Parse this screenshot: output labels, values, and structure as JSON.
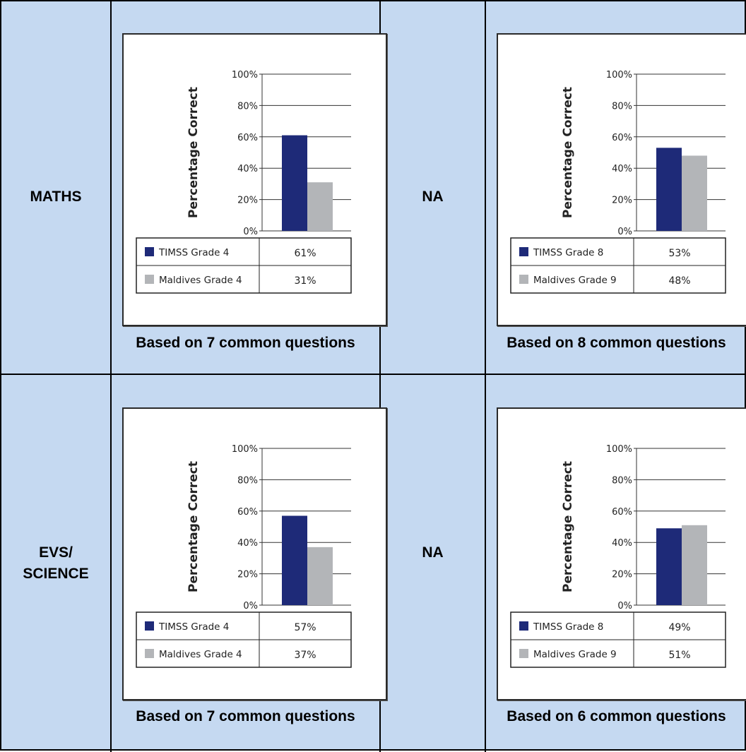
{
  "rows": [
    {
      "label": "MATHS",
      "col2": "NA"
    },
    {
      "label": "EVS/\nSCIENCE",
      "col2": "NA"
    }
  ],
  "y_axis_label": "Percentage Correct",
  "y_ticks": [
    "0%",
    "20%",
    "40%",
    "60%",
    "80%",
    "100%"
  ],
  "colors": {
    "series1": "#1e2a78",
    "series2": "#b3b5b8",
    "cell_bg": "#c5d9f1"
  },
  "chart_data": [
    {
      "type": "bar",
      "ylim": [
        0,
        100
      ],
      "ylabel": "Percentage Correct",
      "series": [
        {
          "name": "TIMSS Grade 4",
          "values": [
            61
          ],
          "display": "61%"
        },
        {
          "name": "Maldives Grade 4",
          "values": [
            31
          ],
          "display": "31%"
        }
      ],
      "caption": "Based on 7 common questions"
    },
    {
      "type": "bar",
      "ylim": [
        0,
        100
      ],
      "ylabel": "Percentage Correct",
      "series": [
        {
          "name": "TIMSS Grade 8",
          "values": [
            53
          ],
          "display": "53%"
        },
        {
          "name": "Maldives Grade 9",
          "values": [
            48
          ],
          "display": "48%"
        }
      ],
      "caption": "Based on 8 common questions"
    },
    {
      "type": "bar",
      "ylim": [
        0,
        100
      ],
      "ylabel": "Percentage Correct",
      "series": [
        {
          "name": "TIMSS Grade 4",
          "values": [
            57
          ],
          "display": "57%"
        },
        {
          "name": "Maldives Grade 4",
          "values": [
            37
          ],
          "display": "37%"
        }
      ],
      "caption": "Based on 7 common questions"
    },
    {
      "type": "bar",
      "ylim": [
        0,
        100
      ],
      "ylabel": "Percentage Correct",
      "series": [
        {
          "name": "TIMSS Grade 8",
          "values": [
            49
          ],
          "display": "49%"
        },
        {
          "name": "Maldives Grade 9",
          "values": [
            51
          ],
          "display": "51%"
        }
      ],
      "caption": "Based on 6 common questions"
    }
  ]
}
